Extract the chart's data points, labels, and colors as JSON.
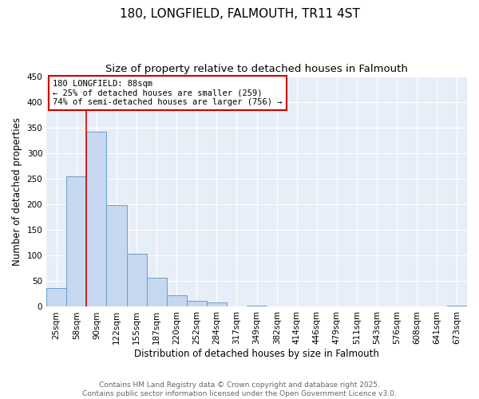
{
  "title": "180, LONGFIELD, FALMOUTH, TR11 4ST",
  "subtitle": "Size of property relative to detached houses in Falmouth",
  "xlabel": "Distribution of detached houses by size in Falmouth",
  "ylabel": "Number of detached properties",
  "bar_labels": [
    "25sqm",
    "58sqm",
    "90sqm",
    "122sqm",
    "155sqm",
    "187sqm",
    "220sqm",
    "252sqm",
    "284sqm",
    "317sqm",
    "349sqm",
    "382sqm",
    "414sqm",
    "446sqm",
    "479sqm",
    "511sqm",
    "543sqm",
    "576sqm",
    "608sqm",
    "641sqm",
    "673sqm"
  ],
  "bar_values": [
    36,
    255,
    342,
    198,
    104,
    57,
    22,
    11,
    8,
    0,
    3,
    0,
    0,
    0,
    0,
    0,
    0,
    0,
    0,
    0,
    2
  ],
  "bar_color": "#c5d8f0",
  "bar_edge_color": "#6a9fc8",
  "ylim": [
    0,
    450
  ],
  "yticks": [
    0,
    50,
    100,
    150,
    200,
    250,
    300,
    350,
    400,
    450
  ],
  "vline_idx": 2,
  "vline_color": "#dd0000",
  "annotation_title": "180 LONGFIELD: 88sqm",
  "annotation_line1": "← 25% of detached houses are smaller (259)",
  "annotation_line2": "74% of semi-detached houses are larger (756) →",
  "annotation_box_facecolor": "#ffffff",
  "annotation_box_edgecolor": "#cc0000",
  "footer1": "Contains HM Land Registry data © Crown copyright and database right 2025.",
  "footer2": "Contains public sector information licensed under the Open Government Licence v3.0.",
  "bg_color": "#ffffff",
  "plot_bg_color": "#e8eef8",
  "grid_color": "#ffffff",
  "title_fontsize": 11,
  "subtitle_fontsize": 9.5,
  "axis_label_fontsize": 8.5,
  "tick_fontsize": 7.5,
  "annotation_fontsize": 7.5,
  "footer_fontsize": 6.5
}
